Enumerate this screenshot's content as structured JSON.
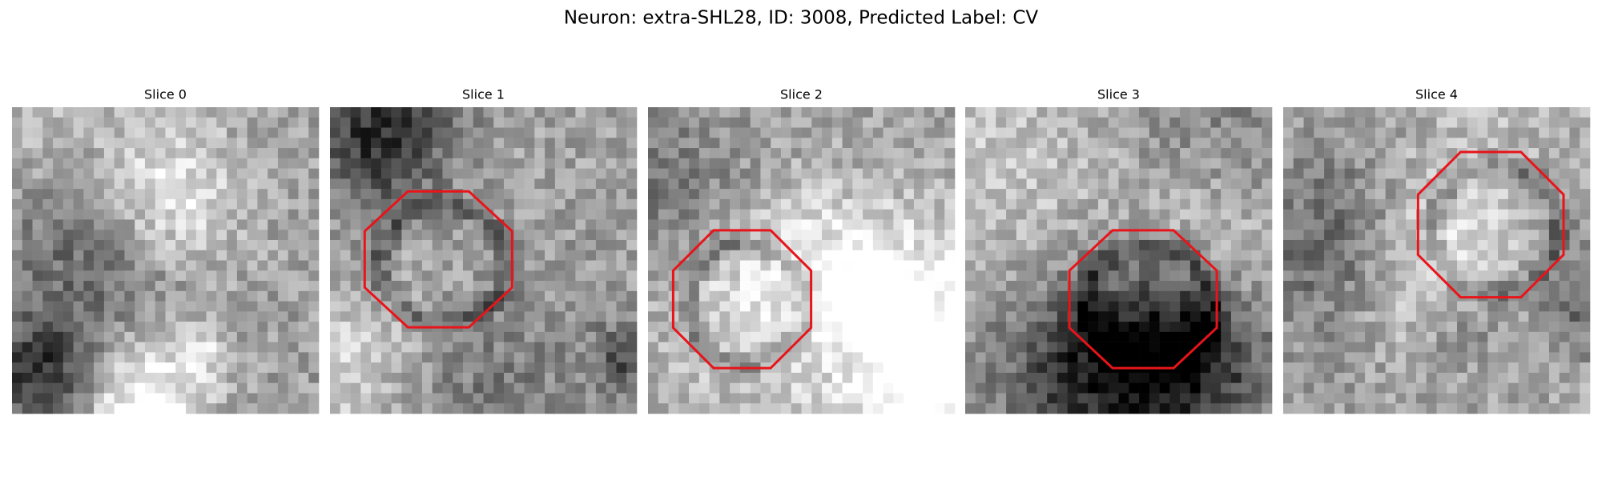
{
  "header": {
    "title": "Neuron: extra-SHL28, ID: 3008, Predicted Label: CV"
  },
  "panels": [
    {
      "title": "Slice 0"
    },
    {
      "title": "Slice 1"
    },
    {
      "title": "Slice 2"
    },
    {
      "title": "Slice 3"
    },
    {
      "title": "Slice 4"
    }
  ]
}
